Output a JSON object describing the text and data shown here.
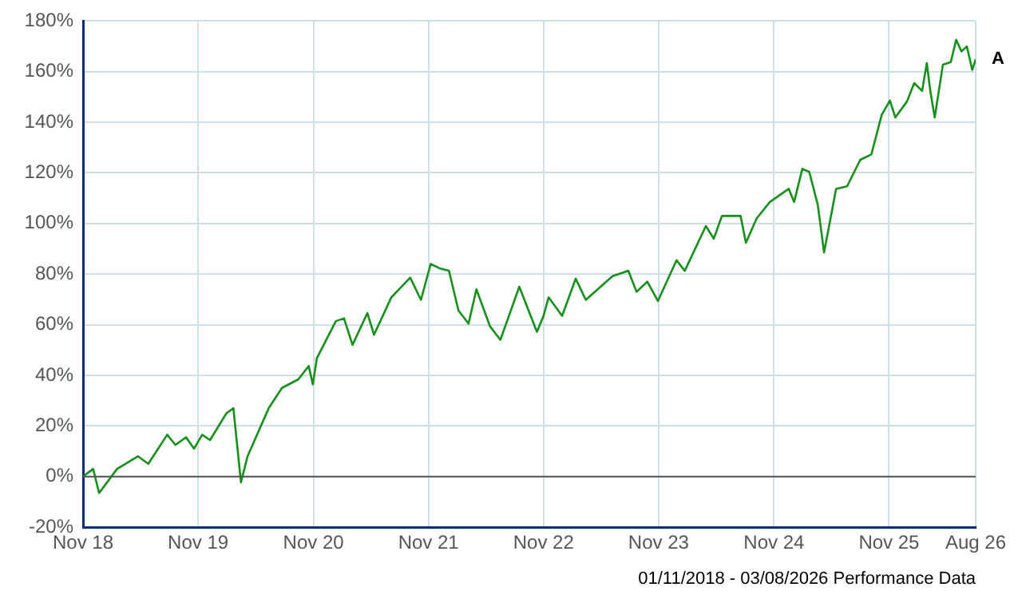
{
  "chart_data": {
    "type": "line",
    "x": [
      "2018-11-01",
      "2018-12-03",
      "2018-12-22",
      "2019-02-17",
      "2019-04-24",
      "2019-05-27",
      "2019-07-26",
      "2019-08-21",
      "2019-09-24",
      "2019-10-19",
      "2019-11-14",
      "2019-12-09",
      "2020-01-30",
      "2020-02-21",
      "2020-03-16",
      "2020-04-06",
      "2020-06-12",
      "2020-07-24",
      "2020-09-14",
      "2020-10-17",
      "2020-10-30",
      "2020-11-12",
      "2021-01-11",
      "2021-02-06",
      "2021-03-05",
      "2021-04-21",
      "2021-05-12",
      "2021-07-06",
      "2021-09-04",
      "2021-10-08",
      "2021-11-08",
      "2021-12-06",
      "2022-01-05",
      "2022-02-04",
      "2022-03-08",
      "2022-04-02",
      "2022-05-15",
      "2022-06-17",
      "2022-08-16",
      "2022-10-11",
      "2022-11-01",
      "2022-11-17",
      "2022-12-30",
      "2023-02-11",
      "2023-03-15",
      "2023-06-08",
      "2023-07-28",
      "2023-08-23",
      "2023-09-26",
      "2023-10-30",
      "2023-12-28",
      "2024-01-23",
      "2024-03-30",
      "2024-04-24",
      "2024-05-20",
      "2024-07-18",
      "2024-08-04",
      "2024-09-07",
      "2024-10-19",
      "2024-12-18",
      "2025-01-04",
      "2025-01-30",
      "2025-02-21",
      "2025-03-20",
      "2025-04-09",
      "2025-05-01",
      "2025-05-17",
      "2025-06-21",
      "2025-08-02",
      "2025-09-06",
      "2025-10-09",
      "2025-11-04",
      "2025-11-21",
      "2025-12-28",
      "2026-01-20",
      "2026-02-14",
      "2026-03-01",
      "2026-03-12",
      "2026-03-26",
      "2026-04-21",
      "2026-05-16",
      "2026-06-02",
      "2026-06-19",
      "2026-07-06",
      "2026-07-23",
      "2026-08-03"
    ],
    "series": [
      {
        "name": "A",
        "color": "#15901a",
        "values": [
          0,
          3,
          -6.5,
          3,
          8,
          5,
          16.5,
          12.5,
          15.5,
          11,
          16.5,
          14.4,
          25,
          27,
          -2.3,
          8,
          27,
          35,
          38.4,
          43.7,
          36.4,
          46.8,
          61.4,
          62.5,
          52,
          64.6,
          56,
          70.8,
          78.6,
          69.8,
          84,
          82.3,
          81.3,
          65.6,
          60.4,
          74,
          59.4,
          54,
          75,
          57.2,
          63.5,
          70.8,
          63.5,
          78.2,
          69.8,
          79.2,
          81.3,
          73,
          77,
          69.4,
          85.5,
          81.3,
          99,
          94,
          103,
          103,
          92.4,
          102,
          108.5,
          113.7,
          108.5,
          121.6,
          120.4,
          107.4,
          88.6,
          103,
          113.7,
          114.7,
          125.2,
          127.3,
          143,
          148.6,
          141.9,
          148.2,
          155.5,
          152.4,
          163.4,
          152.4,
          141.9,
          162.8,
          163.8,
          172.6,
          168,
          170,
          160.7,
          164.9
        ]
      }
    ],
    "xlim": [
      "2018-11-01",
      "2026-08-03"
    ],
    "xticks": [
      {
        "value": "2018-11-01",
        "label": "Nov 18"
      },
      {
        "value": "2019-11-01",
        "label": "Nov 19"
      },
      {
        "value": "2020-11-01",
        "label": "Nov 20"
      },
      {
        "value": "2021-11-01",
        "label": "Nov 21"
      },
      {
        "value": "2022-11-01",
        "label": "Nov 22"
      },
      {
        "value": "2023-11-01",
        "label": "Nov 23"
      },
      {
        "value": "2024-11-01",
        "label": "Nov 24"
      },
      {
        "value": "2025-11-01",
        "label": "Nov 25"
      },
      {
        "value": "2026-08-03",
        "label": "Aug 26"
      }
    ],
    "ylim": [
      -20,
      180
    ],
    "yticks": [
      {
        "value": -20,
        "label": "-20%"
      },
      {
        "value": 0,
        "label": "0%"
      },
      {
        "value": 20,
        "label": "20%"
      },
      {
        "value": 40,
        "label": "40%"
      },
      {
        "value": 60,
        "label": "60%"
      },
      {
        "value": 80,
        "label": "80%"
      },
      {
        "value": 100,
        "label": "100%"
      },
      {
        "value": 120,
        "label": "120%"
      },
      {
        "value": 140,
        "label": "140%"
      },
      {
        "value": 160,
        "label": "160%"
      },
      {
        "value": 180,
        "label": "180%"
      }
    ],
    "grid": true,
    "legend": false,
    "ref_lines": [
      {
        "axis": "y",
        "value": 0,
        "color": "#555555"
      }
    ],
    "annotations": [
      "01/11/2018 - 03/08/2026 Performance Data"
    ]
  }
}
